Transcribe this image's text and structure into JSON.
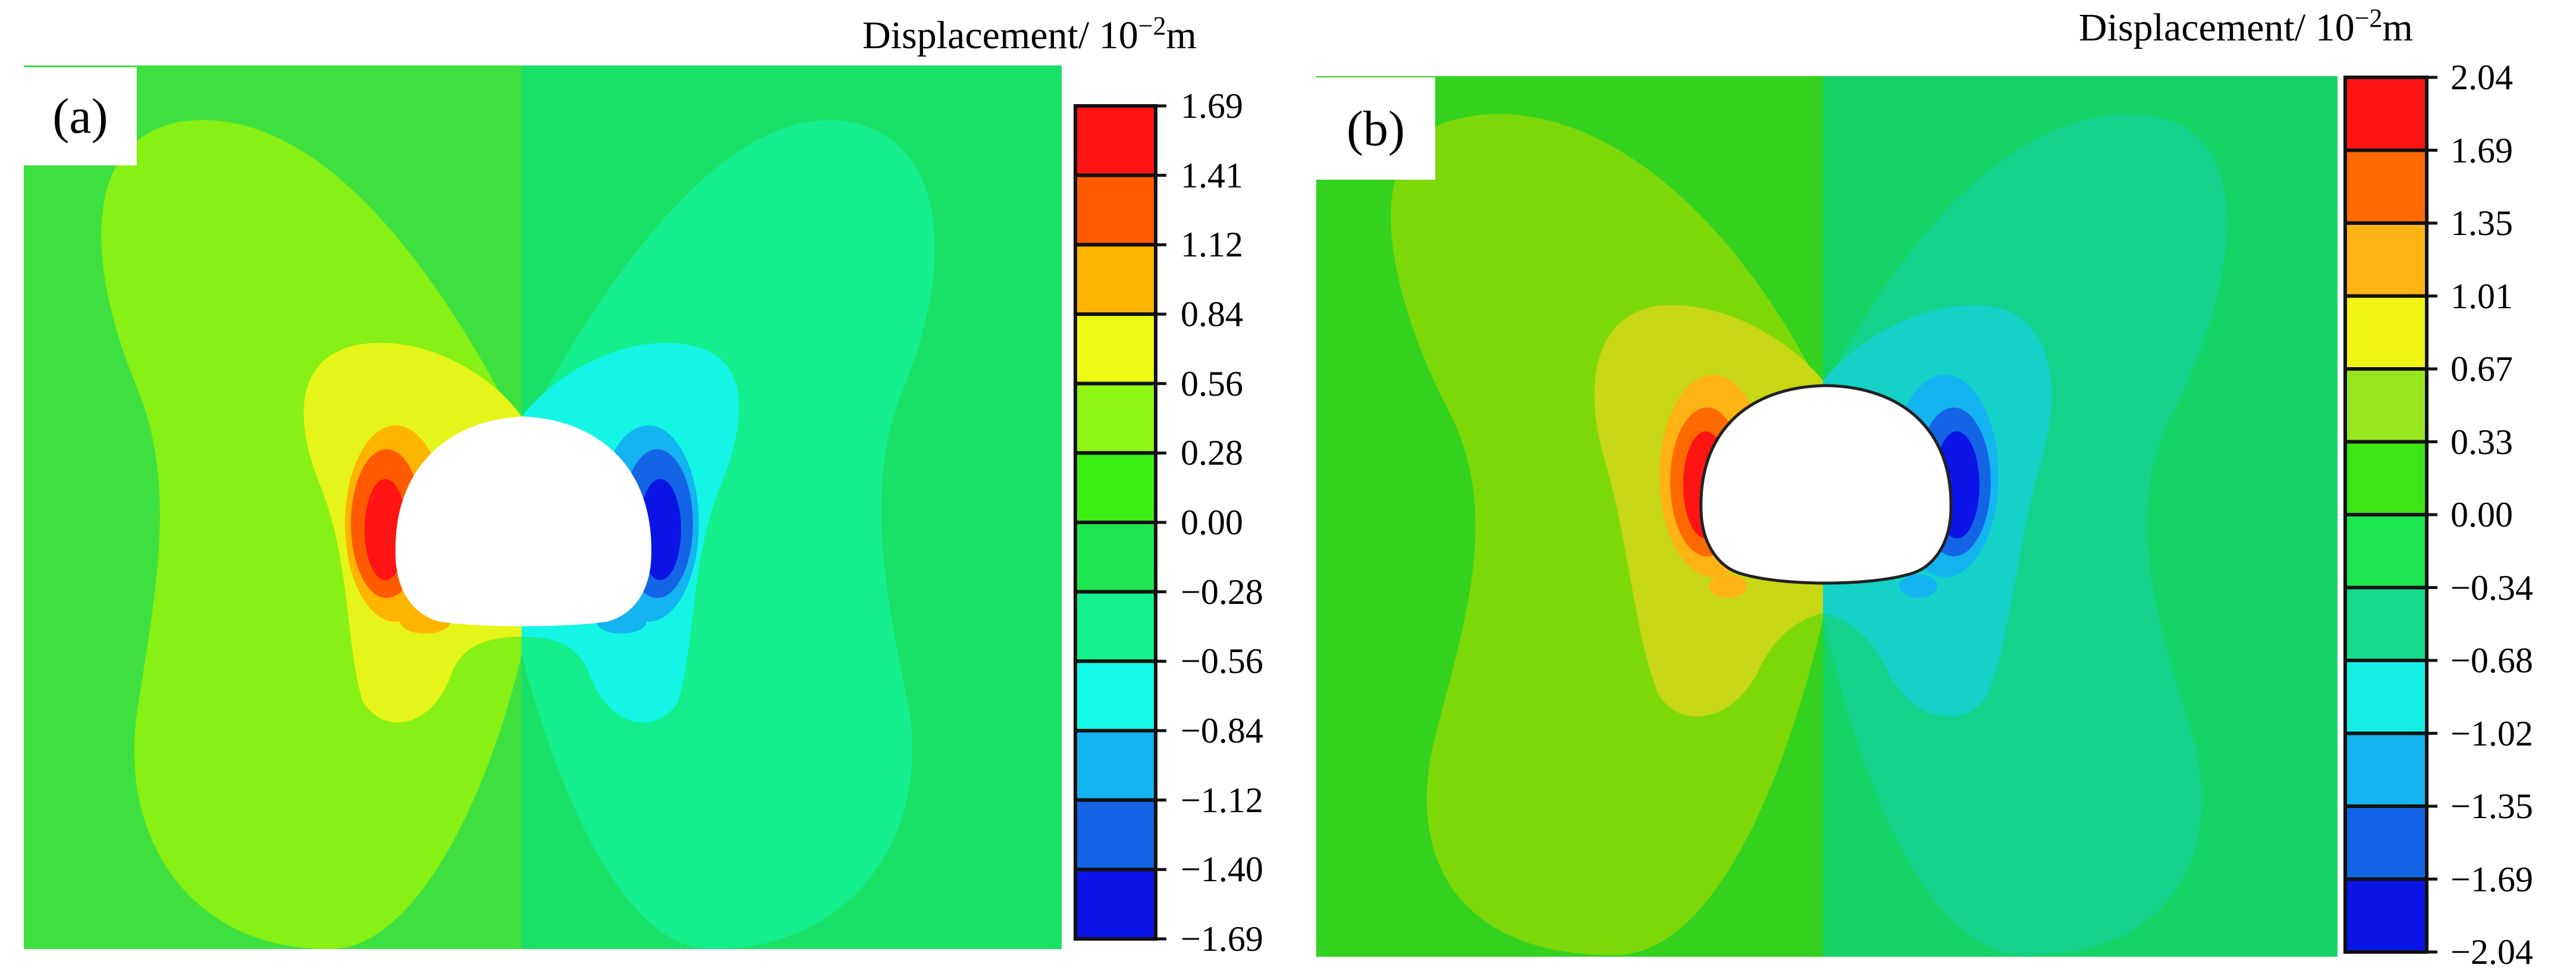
{
  "figure": {
    "panel_a": {
      "label": "(a)",
      "colorbar": {
        "title_base": "Displacement/ 10",
        "title_exp": "−2",
        "title_unit": "m",
        "ticks": [
          "1.69",
          "1.41",
          "1.12",
          "0.84",
          "0.56",
          "0.28",
          "0.00",
          "−0.28",
          "−0.56",
          "−0.84",
          "−1.12",
          "−1.40",
          "−1.69"
        ],
        "colors": [
          "#ff1414",
          "#ff5a00",
          "#ffb400",
          "#ecfa14",
          "#8ef514",
          "#3cf014",
          "#1ee650",
          "#14f08c",
          "#14fae6",
          "#14b4f0",
          "#1464e6",
          "#0a14e6"
        ]
      },
      "field_colors": {
        "background_left": "#3ee040",
        "background_right": "#19e066",
        "lobe_left": "#87f014",
        "lobe_right": "#14ee8c",
        "inner_left": "#e6f519",
        "inner_right": "#14f5e6",
        "ring_left_1": "#ffb400",
        "ring_left_2": "#ff5a00",
        "ring_left_3": "#ff1414",
        "ring_right_1": "#14b4f0",
        "ring_right_2": "#1464e6",
        "ring_right_3": "#0a14e6"
      }
    },
    "panel_b": {
      "label": "(b)",
      "colorbar": {
        "title_base": "Displacement/ 10",
        "title_exp": "−2",
        "title_unit": "m",
        "ticks": [
          "2.04",
          "1.69",
          "1.35",
          "1.01",
          "0.67",
          "0.33",
          "0.00",
          "−0.34",
          "−0.68",
          "−1.02",
          "−1.35",
          "−1.69",
          "−2.04"
        ],
        "colors": [
          "#ff1414",
          "#ff6a00",
          "#ffb414",
          "#f0f514",
          "#96e61e",
          "#3ce614",
          "#1ee650",
          "#14dc8c",
          "#14f0e6",
          "#14b4f0",
          "#1464e6",
          "#0a14e6"
        ]
      },
      "field_colors": {
        "background_left": "#32d21e",
        "background_right": "#14d264",
        "lobe_left": "#7dd80a",
        "lobe_right": "#14d28c",
        "inner_left": "#c8d814",
        "inner_right": "#14d2c8",
        "ring_left_1": "#ffb414",
        "ring_left_2": "#ff6a00",
        "ring_left_3": "#ff1414",
        "ring_right_1": "#14b4f0",
        "ring_right_2": "#1464e6",
        "ring_right_3": "#0a14e6"
      }
    }
  }
}
